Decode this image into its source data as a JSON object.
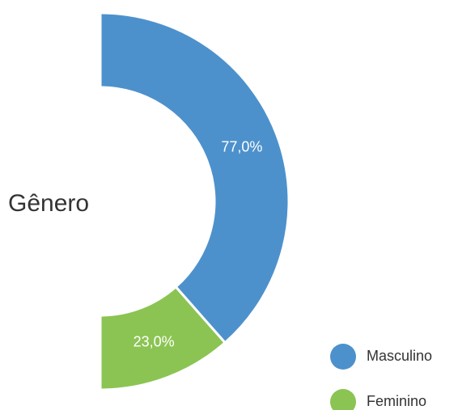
{
  "chart_data": {
    "type": "pie",
    "title": "Gênero",
    "categories": [
      "Masculino",
      "Feminino"
    ],
    "values": [
      77.0,
      23.0
    ],
    "value_labels": [
      "77,0%",
      "23,0%"
    ],
    "colors": [
      "#4d91cc",
      "#8bc453"
    ],
    "legend": "bottom-right"
  }
}
